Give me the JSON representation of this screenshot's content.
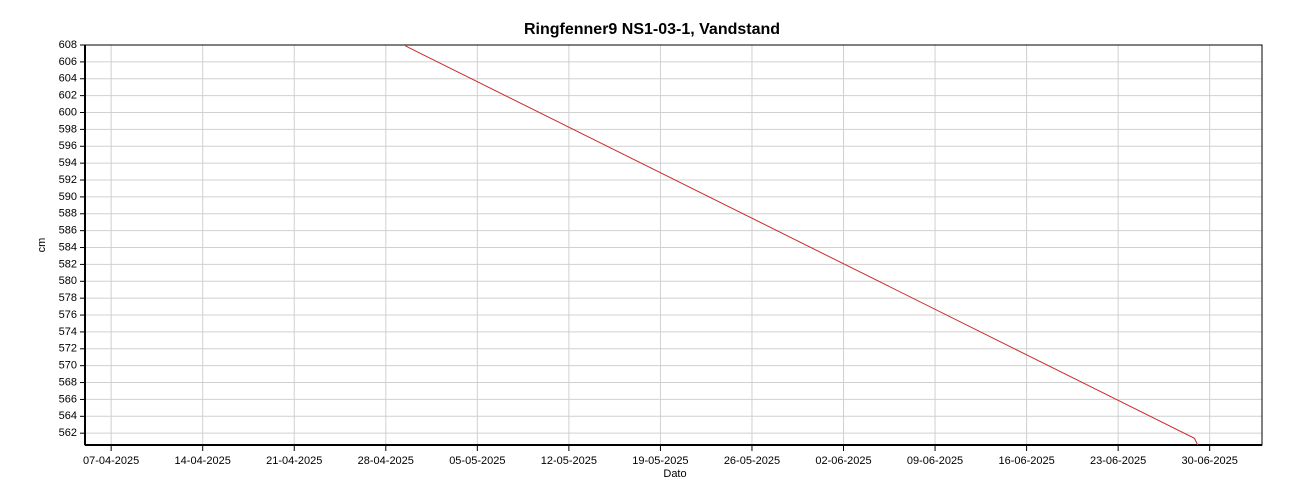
{
  "chart_data": {
    "type": "line",
    "title": "Ringfenner9 NS1-03-1, Vandstand",
    "x_label": "Dato",
    "y_label": "cm",
    "x": [
      "2025-04-29T12:00",
      "2025-04-29T18:00",
      "2025-06-28T20:00",
      "2025-06-29T02:00"
    ],
    "values": [
      607.9,
      607.7,
      561.4,
      560.6
    ],
    "color": "#cc2a2a",
    "xlim": [
      "2025-04-05",
      "2025-07-04"
    ],
    "xticks": [
      {
        "value": "2025-04-07",
        "label": "07-04-2025"
      },
      {
        "value": "2025-04-14",
        "label": "14-04-2025"
      },
      {
        "value": "2025-04-21",
        "label": "21-04-2025"
      },
      {
        "value": "2025-04-28",
        "label": "28-04-2025"
      },
      {
        "value": "2025-05-05",
        "label": "05-05-2025"
      },
      {
        "value": "2025-05-12",
        "label": "12-05-2025"
      },
      {
        "value": "2025-05-19",
        "label": "19-05-2025"
      },
      {
        "value": "2025-05-26",
        "label": "26-05-2025"
      },
      {
        "value": "2025-06-02",
        "label": "02-06-2025"
      },
      {
        "value": "2025-06-09",
        "label": "09-06-2025"
      },
      {
        "value": "2025-06-16",
        "label": "16-06-2025"
      },
      {
        "value": "2025-06-23",
        "label": "23-06-2025"
      },
      {
        "value": "2025-06-30",
        "label": "30-06-2025"
      }
    ],
    "ylim": [
      560.6,
      608
    ],
    "yticks": [
      562,
      564,
      566,
      568,
      570,
      572,
      574,
      576,
      578,
      580,
      582,
      584,
      586,
      588,
      590,
      592,
      594,
      596,
      598,
      600,
      602,
      604,
      606,
      608
    ],
    "grid": true
  }
}
